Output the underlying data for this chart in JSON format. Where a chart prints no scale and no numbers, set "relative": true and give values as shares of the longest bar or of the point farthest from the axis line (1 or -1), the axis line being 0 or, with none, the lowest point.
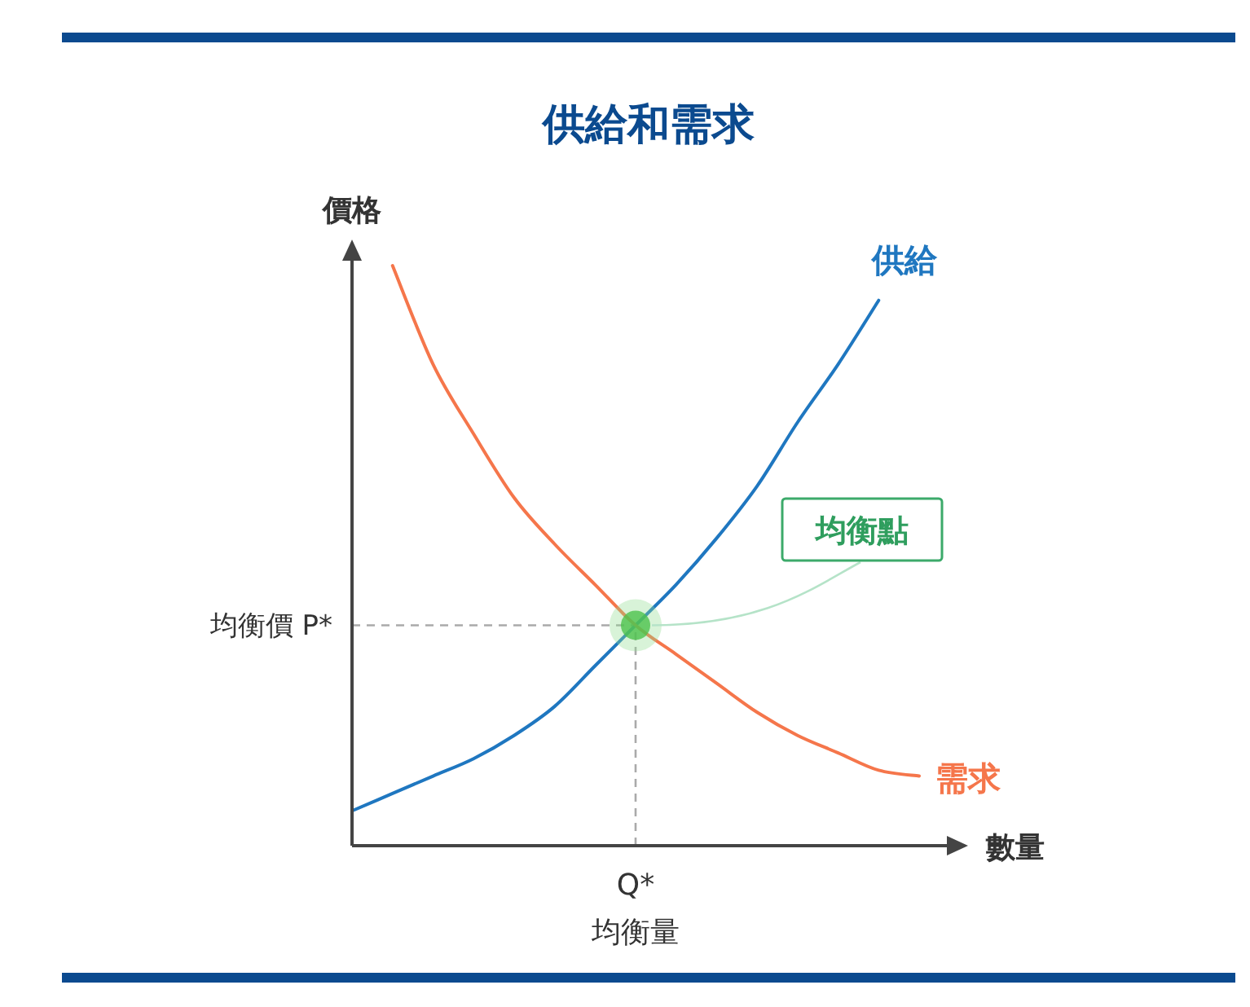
{
  "chart_data": {
    "type": "line",
    "title": "供給和需求",
    "xlabel": "數量",
    "ylabel": "價格",
    "relative": true,
    "marker": "none",
    "line_style": "solid",
    "categories": [
      null,
      null,
      null,
      null,
      null,
      null,
      null,
      null,
      null,
      null,
      null,
      null,
      null,
      null,
      null
    ],
    "series": [
      {
        "name": "供給",
        "color": "#1f77c0",
        "values": [
          0.06,
          0.09,
          0.12,
          0.15,
          0.19,
          0.24,
          0.31,
          0.38,
          0.45,
          0.53,
          0.62,
          0.73,
          0.83,
          0.94,
          null
        ]
      },
      {
        "name": "需求",
        "color": "#f5764b",
        "values": [
          null,
          1,
          0.83,
          0.71,
          0.6,
          0.52,
          0.45,
          0.38,
          0.33,
          0.28,
          0.23,
          0.19,
          0.16,
          0.13,
          0.12
        ]
      }
    ],
    "ref_lines": [
      {
        "axis": "y",
        "value": 0.38,
        "label": "均衡價 P*",
        "line_style": "dashed",
        "color": "#aaaaaa"
      }
    ],
    "annotations": [
      "Q*",
      "均衡量",
      "均衡點"
    ]
  }
}
